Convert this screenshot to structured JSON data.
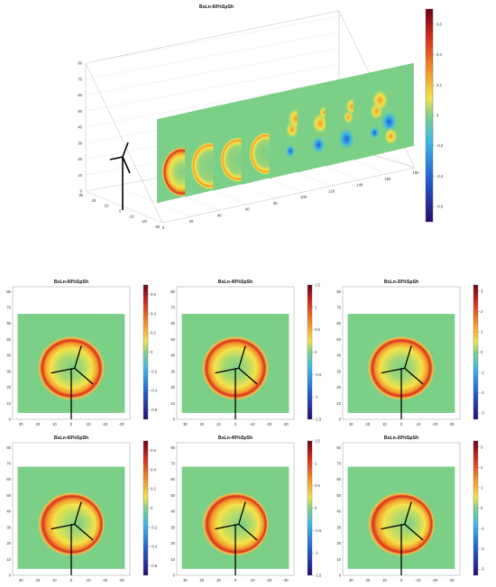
{
  "colormap": [
    "#2b0a6e",
    "#1f5fd0",
    "#3fb8e6",
    "#7fd08a",
    "#f3e34a",
    "#f39a2a",
    "#d7301f",
    "#6b0014"
  ],
  "field_color": "#7ccf86",
  "turbine_color": "#000000",
  "chart_data": [
    {
      "type": "heatmap",
      "kind": "3d-slices",
      "title": "BsLn-60%SpSh",
      "x_ticks": [
        0,
        20,
        40,
        60,
        80,
        100,
        120,
        140,
        160,
        180
      ],
      "y_ticks": [
        30,
        20,
        10,
        0,
        -10,
        -20,
        -30
      ],
      "z_ticks": [
        0,
        10,
        20,
        30,
        40,
        50,
        60,
        70,
        80
      ],
      "slice_positions": [
        20,
        40,
        60,
        80,
        100,
        120,
        140,
        160
      ],
      "colorbar": {
        "range": [
          -0.7,
          0.7
        ],
        "ticks": [
          0.6,
          0.4,
          0.2,
          0,
          -0.2,
          -0.4,
          -0.6
        ]
      },
      "grid": true
    },
    {
      "type": "heatmap",
      "title": "BsLn-60%SpSh",
      "x_ticks": [
        30,
        20,
        10,
        0,
        -10,
        -20,
        -30
      ],
      "y_ticks": [
        0,
        10,
        20,
        30,
        40,
        50,
        60,
        70,
        80
      ],
      "ring_center": [
        0,
        32
      ],
      "ring_radius": 20,
      "colorbar": {
        "range": [
          -0.7,
          0.7
        ],
        "ticks": [
          0.6,
          0.4,
          0.2,
          0,
          -0.2,
          -0.4,
          -0.6
        ]
      }
    },
    {
      "type": "heatmap",
      "title": "BsLn-40%SpSh",
      "x_ticks": [
        30,
        20,
        10,
        0,
        -10,
        -20,
        -30
      ],
      "y_ticks": [
        0,
        10,
        20,
        30,
        40,
        50,
        60,
        70,
        80
      ],
      "ring_center": [
        0,
        32
      ],
      "ring_radius": 20,
      "colorbar": {
        "range": [
          -1.5,
          1.5
        ],
        "ticks": [
          1.5,
          1,
          0.5,
          0,
          -0.5,
          -1,
          -1.5
        ]
      }
    },
    {
      "type": "heatmap",
      "title": "BsLn-20%SpSh",
      "x_ticks": [
        30,
        20,
        10,
        0,
        -10,
        -20,
        -30
      ],
      "y_ticks": [
        0,
        10,
        20,
        30,
        40,
        50,
        60,
        70,
        80
      ],
      "ring_center": [
        0,
        32
      ],
      "ring_radius": 20,
      "colorbar": {
        "range": [
          -3.3,
          3.3
        ],
        "ticks": [
          3,
          2,
          1,
          0,
          -1,
          -2,
          -3
        ]
      }
    },
    {
      "type": "heatmap",
      "title": "BsLn-60%SpSh",
      "x_ticks": [
        30,
        20,
        10,
        0,
        -10,
        -20,
        -30
      ],
      "y_ticks": [
        0,
        10,
        20,
        30,
        40,
        50,
        60,
        70,
        80
      ],
      "ring_center": [
        0,
        32
      ],
      "ring_radius": 20,
      "colorbar": {
        "range": [
          -0.7,
          0.7
        ],
        "ticks": [
          0.6,
          0.4,
          0.2,
          0,
          -0.2,
          -0.4,
          -0.6
        ]
      }
    },
    {
      "type": "heatmap",
      "title": "BsLn-40%SpSh",
      "x_ticks": [
        30,
        20,
        10,
        0,
        -10,
        -20,
        -30
      ],
      "y_ticks": [
        0,
        10,
        20,
        30,
        40,
        50,
        60,
        70,
        80
      ],
      "ring_center": [
        0,
        32
      ],
      "ring_radius": 20,
      "colorbar": {
        "range": [
          -1.5,
          1.5
        ],
        "ticks": [
          1.5,
          1,
          0.5,
          0,
          -0.5,
          -1,
          -1.5
        ]
      }
    },
    {
      "type": "heatmap",
      "title": "BsLn-20%SpSh",
      "x_ticks": [
        30,
        20,
        10,
        0,
        -10,
        -20,
        -30
      ],
      "y_ticks": [
        0,
        10,
        20,
        30,
        40,
        50,
        60,
        70,
        80
      ],
      "ring_center": [
        0,
        32
      ],
      "ring_radius": 20,
      "colorbar": {
        "range": [
          -3.3,
          3.3
        ],
        "ticks": [
          3,
          2,
          1,
          0,
          -1,
          -2,
          -3
        ]
      }
    }
  ]
}
